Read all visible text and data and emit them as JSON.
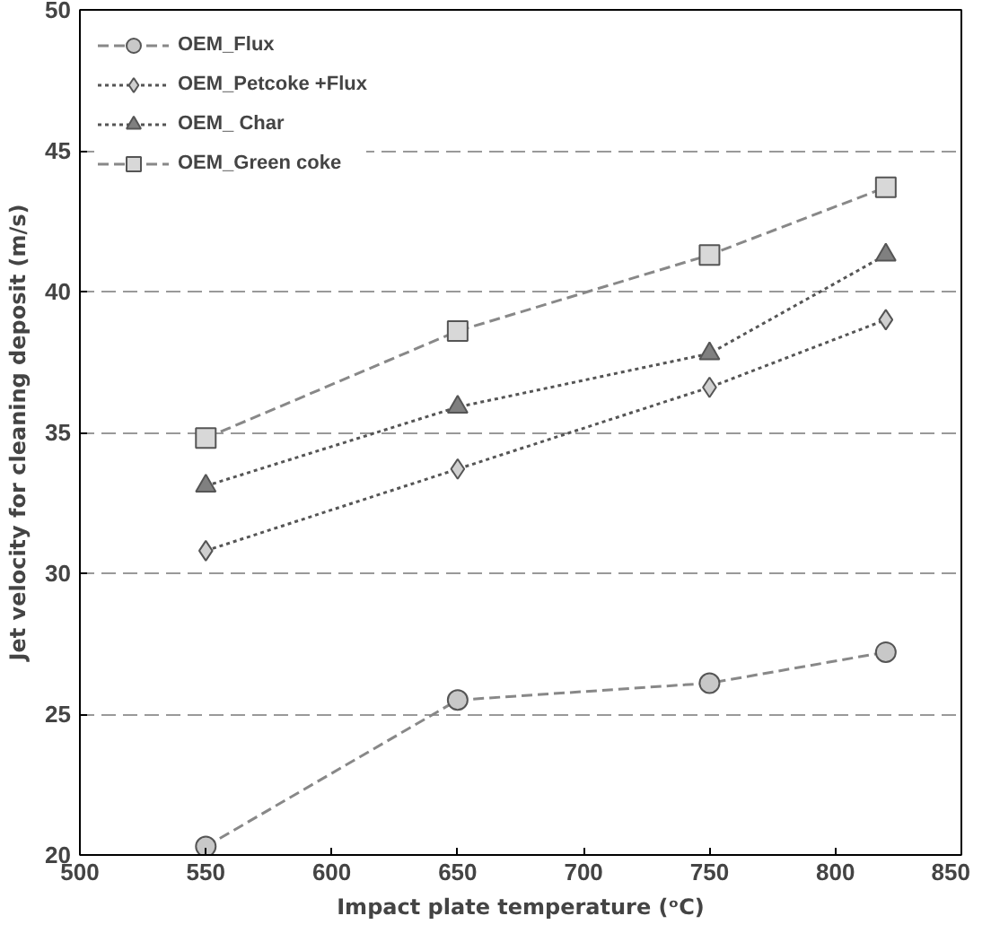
{
  "chart_data": {
    "type": "line",
    "xlabel": "Impact plate temperature (ᵒC)",
    "ylabel": "Jet velocity for cleaning deposit (m/s)",
    "x": [
      550,
      650,
      750,
      820
    ],
    "xlim": [
      500,
      850
    ],
    "xticks": [
      500,
      550,
      600,
      650,
      700,
      750,
      800,
      850
    ],
    "ylim": [
      20,
      50
    ],
    "yticks": [
      20,
      25,
      30,
      35,
      40,
      45,
      50
    ],
    "grid": "y",
    "legend": "top left",
    "series": [
      {
        "name": "OEM_Flux",
        "color": "#c8c8c8",
        "marker": "circle",
        "line_style": "dashed",
        "values": [
          20.3,
          25.5,
          26.1,
          27.2
        ]
      },
      {
        "name": "OEM_Petcoke +Flux",
        "color": "#d0d0d0",
        "marker": "diamond",
        "line_style": "dotted",
        "values": [
          30.8,
          33.7,
          36.6,
          39.0
        ]
      },
      {
        "name": "OEM_ Char",
        "color": "#808080",
        "marker": "triangle",
        "line_style": "dotted",
        "values": [
          33.1,
          35.9,
          37.8,
          41.3
        ]
      },
      {
        "name": "OEM_Green coke",
        "color": "#d8d8d8",
        "marker": "square",
        "line_style": "dashed",
        "values": [
          34.8,
          38.6,
          41.3,
          43.7
        ]
      }
    ]
  }
}
